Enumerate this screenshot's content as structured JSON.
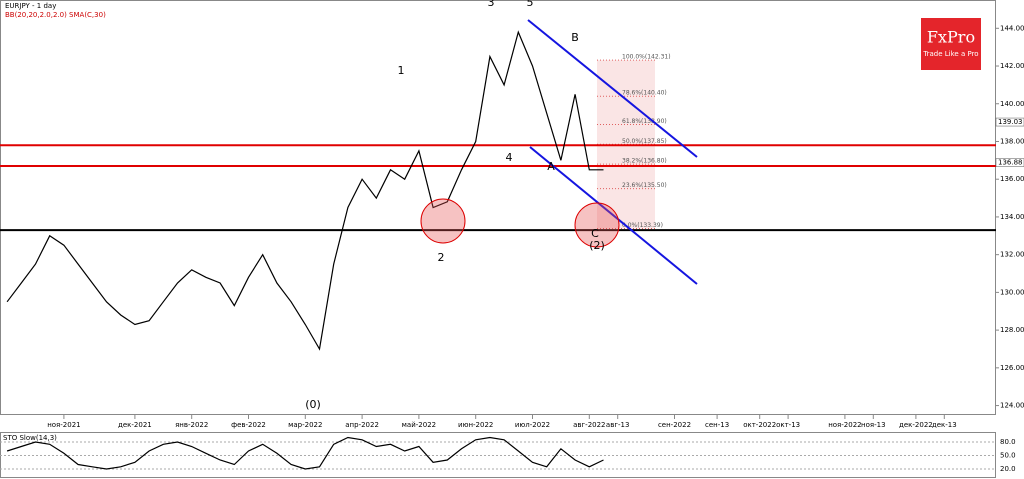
{
  "chart_data": [
    {
      "type": "line",
      "title": "EURJPY - 1 day",
      "subtitle": "BB(20,20,2.0,2.0) SMA(C,30)",
      "categories": [
        null,
        null,
        null,
        null,
        "ноя-2021",
        null,
        null,
        null,
        null,
        "дек-2021",
        null,
        null,
        null,
        "янв-2022",
        null,
        null,
        null,
        "фев-2022",
        null,
        null,
        null,
        "мар-2022",
        null,
        null,
        null,
        "апр-2022",
        null,
        null,
        null,
        "май-2022",
        null,
        null,
        null,
        "июн-2022",
        null,
        null,
        null,
        "июл-2022",
        null,
        null,
        null,
        "авг-2022",
        null,
        "авг-13",
        null,
        null,
        null,
        "сен-2022",
        null,
        null,
        "сен-13",
        null,
        null,
        "окт-2022",
        null,
        "окт-13",
        null,
        null,
        null,
        "ноя-2022",
        null,
        "ноя-13",
        null,
        null,
        "дек-2022",
        null,
        "дек-13",
        null
      ],
      "series": [
        {
          "name": "EURJPY",
          "color": "#000000",
          "values": [
            129.5,
            130.5,
            131.5,
            133,
            132.5,
            131.5,
            130.5,
            129.5,
            128.8,
            128.3,
            128.5,
            129.5,
            130.5,
            131.2,
            130.8,
            130.5,
            129.3,
            130.8,
            132,
            130.5,
            129.5,
            128.3,
            127,
            131.5,
            134.5,
            136,
            135,
            136.5,
            136,
            137.5,
            134.5,
            134.8,
            136.5,
            138,
            142.5,
            141,
            143.8,
            142,
            139.5,
            137,
            140.5,
            136.5,
            136.5,
            null,
            null,
            null,
            null,
            null,
            null,
            null,
            null,
            null,
            null,
            null,
            null,
            null,
            null,
            null,
            null,
            null,
            null,
            null,
            null,
            null,
            null,
            null,
            null,
            null
          ]
        }
      ],
      "ylim": [
        123.5,
        145.5
      ],
      "yticks": [
        {
          "value": 124,
          "label": "124.00"
        },
        {
          "value": 126,
          "label": "126.00"
        },
        {
          "value": 128,
          "label": "128.00"
        },
        {
          "value": 130,
          "label": "130.00"
        },
        {
          "value": 132,
          "label": "132.00"
        },
        {
          "value": 134,
          "label": "134.00"
        },
        {
          "value": 136,
          "label": "136.00"
        },
        {
          "value": 138,
          "label": "138.00"
        },
        {
          "value": 140,
          "label": "140.00"
        },
        {
          "value": 142,
          "label": "142.00"
        },
        {
          "value": 144,
          "label": "144.00"
        }
      ],
      "price_labels": [
        139.03,
        136.88
      ],
      "levels": [
        {
          "value": 137.8,
          "color": "#e00000"
        },
        {
          "value": 136.7,
          "color": "#e00000"
        },
        {
          "value": 133.3,
          "color": "#000000"
        }
      ],
      "fib_levels": [
        {
          "value": 142.31,
          "label": "100.0%(142.31)"
        },
        {
          "value": 140.4,
          "label": "78.6%(140.40)"
        },
        {
          "value": 138.9,
          "label": "61.8%(138.90)"
        },
        {
          "value": 137.85,
          "label": "50.0%(137.85)"
        },
        {
          "value": 136.8,
          "label": "38.2%(136.80)"
        },
        {
          "value": 135.5,
          "label": "23.6%(135.50)"
        },
        {
          "value": 133.39,
          "label": "0.0%(133.39)"
        }
      ],
      "annotations": [
        "(0)",
        "1",
        "2",
        "3",
        "4",
        "5",
        "A",
        "B",
        "C",
        "(2)"
      ],
      "logo": "FxPro",
      "slogan": "Trade Like a Pro"
    },
    {
      "type": "line",
      "title": "STO Slow(14,3)",
      "series": [
        {
          "name": "STO",
          "color": "#000000",
          "values": [
            60,
            70,
            80,
            75,
            55,
            30,
            25,
            20,
            25,
            35,
            60,
            75,
            80,
            70,
            55,
            40,
            30,
            60,
            75,
            55,
            30,
            20,
            25,
            75,
            90,
            85,
            70,
            75,
            60,
            70,
            35,
            40,
            65,
            85,
            90,
            85,
            60,
            35,
            25,
            65,
            40,
            25,
            40,
            null,
            null,
            null,
            null,
            null,
            null,
            null,
            null,
            null,
            null,
            null,
            null,
            null,
            null,
            null,
            null,
            null,
            null,
            null,
            null,
            null,
            null,
            null,
            null,
            null
          ]
        }
      ],
      "ylim": [
        0,
        100
      ],
      "yticks": [
        {
          "value": 20,
          "label": "20.0"
        },
        {
          "value": 50,
          "label": "50.0"
        },
        {
          "value": 80,
          "label": "80.0"
        }
      ]
    }
  ]
}
